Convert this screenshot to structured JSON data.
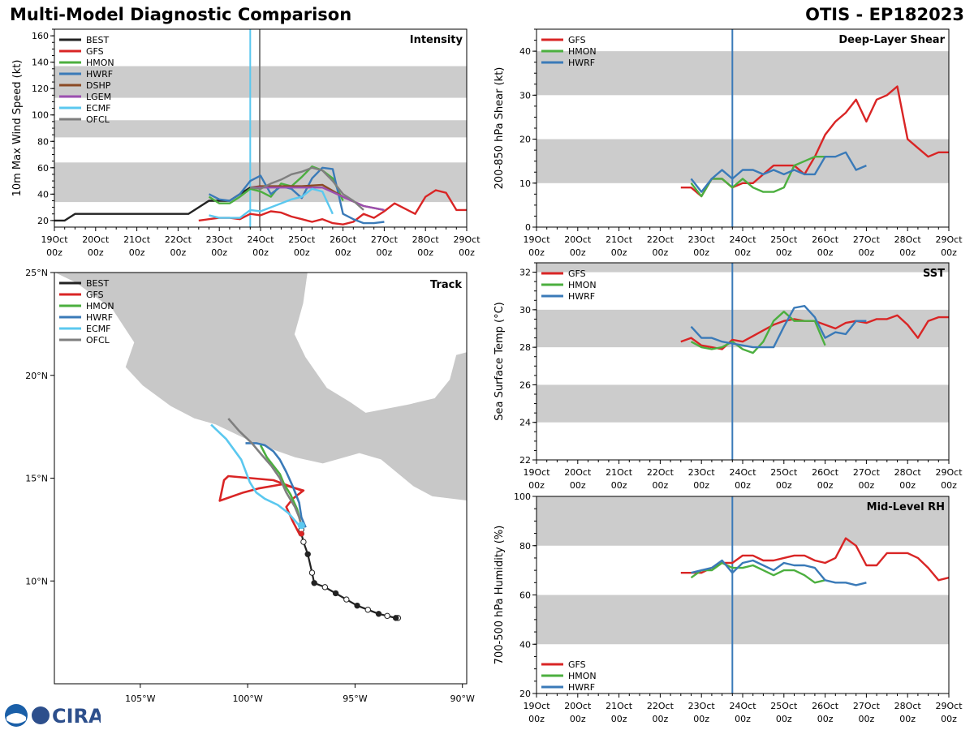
{
  "header": {
    "title": "Multi-Model Diagnostic Comparison",
    "storm": "OTIS - EP182023"
  },
  "logo": {
    "text": "CIRA",
    "agency_icon": "noaa-icon"
  },
  "colors": {
    "BEST": "#222222",
    "GFS": "#d92525",
    "HMON": "#4caf3f",
    "HWRF": "#3a7ab8",
    "DSHP": "#8b4a24",
    "LGEM": "#9b4fb0",
    "ECMF": "#5bc8ef",
    "OFCL": "#7f7f7f",
    "band": "#cccccc",
    "land": "#c8c8c8",
    "vline": "#3a7ab8"
  },
  "time_axis": {
    "ticks": [
      "19Oct\n00z",
      "20Oct\n00z",
      "21Oct\n00z",
      "22Oct\n00z",
      "23Oct\n00z",
      "24Oct\n00z",
      "25Oct\n00z",
      "26Oct\n00z",
      "27Oct\n00z",
      "28Oct\n00z",
      "29Oct\n00z"
    ],
    "current_time": 4.75
  },
  "chart_data": [
    {
      "id": "intensity",
      "type": "line",
      "title": "Intensity",
      "xlabel": "",
      "ylabel": "10m Max Wind Speed (kt)",
      "xlim": [
        0,
        10
      ],
      "ylim": [
        15,
        165
      ],
      "yticks": [
        20,
        40,
        60,
        80,
        100,
        120,
        140,
        160
      ],
      "bands": [
        [
          34,
          64
        ],
        [
          83,
          96
        ],
        [
          113,
          137
        ]
      ],
      "vlines": [
        {
          "x": 4.75,
          "color": "ECMF"
        },
        {
          "x": 4.98,
          "color": "OFCL"
        }
      ],
      "legend": [
        "BEST",
        "GFS",
        "HMON",
        "HWRF",
        "DSHP",
        "LGEM",
        "ECMF",
        "OFCL"
      ],
      "series": [
        {
          "name": "BEST",
          "x": [
            0,
            0.25,
            0.5,
            0.75,
            1,
            1.25,
            1.5,
            1.75,
            2,
            2.25,
            2.5,
            2.75,
            3,
            3.25,
            3.5,
            3.75,
            4,
            4.25,
            4.5,
            4.75
          ],
          "y": [
            20,
            20,
            25,
            25,
            25,
            25,
            25,
            25,
            25,
            25,
            25,
            25,
            25,
            25,
            30,
            35,
            35,
            35,
            40,
            45
          ]
        },
        {
          "name": "GFS",
          "x": [
            3.5,
            3.75,
            4,
            4.25,
            4.5,
            4.75,
            5,
            5.25,
            5.5,
            5.75,
            6,
            6.25,
            6.5,
            6.75,
            7,
            7.25,
            7.5,
            7.75,
            8,
            8.25,
            8.5,
            8.75,
            9,
            9.25,
            9.5,
            9.75,
            10
          ],
          "y": [
            20,
            21,
            22,
            22,
            21,
            25,
            24,
            27,
            26,
            23,
            21,
            19,
            21,
            18,
            17,
            19,
            25,
            22,
            27,
            33,
            29,
            25,
            38,
            43,
            41,
            28,
            28
          ]
        },
        {
          "name": "HMON",
          "x": [
            3.75,
            4,
            4.25,
            4.5,
            4.75,
            5,
            5.25,
            5.5,
            5.75,
            6,
            6.25,
            6.5,
            6.75,
            7
          ],
          "y": [
            38,
            33,
            33,
            38,
            44,
            42,
            38,
            48,
            46,
            53,
            61,
            58,
            52,
            35
          ]
        },
        {
          "name": "HWRF",
          "x": [
            3.75,
            4,
            4.25,
            4.5,
            4.75,
            5,
            5.25,
            5.5,
            5.75,
            6,
            6.25,
            6.5,
            6.75,
            7,
            7.25,
            7.5,
            7.75,
            8
          ],
          "y": [
            40,
            36,
            35,
            40,
            50,
            54,
            40,
            46,
            44,
            37,
            52,
            60,
            59,
            25,
            21,
            18,
            18,
            19
          ]
        },
        {
          "name": "DSHP",
          "x": [
            4.75,
            5,
            5.5,
            6,
            6.5,
            7,
            7.5,
            8
          ],
          "y": [
            45,
            46,
            46,
            46,
            47,
            38,
            31,
            28
          ]
        },
        {
          "name": "LGEM",
          "x": [
            4.75,
            5,
            5.5,
            6,
            6.5,
            7,
            7.5,
            8
          ],
          "y": [
            45,
            45,
            45,
            45,
            45,
            38,
            31,
            28
          ]
        },
        {
          "name": "ECMF",
          "x": [
            3.75,
            4,
            4.25,
            4.5,
            4.75,
            5,
            5.25,
            5.5,
            5.75,
            6,
            6.25,
            6.5,
            6.75
          ],
          "y": [
            24,
            22,
            22,
            22,
            28,
            27,
            30,
            33,
            36,
            38,
            44,
            42,
            25
          ]
        },
        {
          "name": "OFCL",
          "x": [
            4.75,
            5,
            5.25,
            5.5,
            5.75,
            6,
            6.25,
            6.5,
            6.75,
            7,
            7.25,
            7.5
          ],
          "y": [
            45,
            44,
            48,
            51,
            55,
            57,
            60,
            58,
            50,
            40,
            35,
            28
          ]
        }
      ]
    },
    {
      "id": "shear",
      "type": "line",
      "title": "Deep-Layer Shear",
      "xlabel": "",
      "ylabel": "200-850 hPa Shear (kt)",
      "xlim": [
        0,
        10
      ],
      "ylim": [
        0,
        45
      ],
      "yticks": [
        0,
        10,
        20,
        30,
        40
      ],
      "bands": [
        [
          10,
          20
        ],
        [
          30,
          40
        ]
      ],
      "vlines": [
        {
          "x": 4.75,
          "color": "vline"
        }
      ],
      "legend": [
        "GFS",
        "HMON",
        "HWRF"
      ],
      "series": [
        {
          "name": "GFS",
          "x": [
            3.5,
            3.75,
            4,
            4.25,
            4.5,
            4.75,
            5,
            5.25,
            5.5,
            5.75,
            6,
            6.25,
            6.5,
            6.75,
            7,
            7.25,
            7.5,
            7.75,
            8,
            8.25,
            8.5,
            8.75,
            9,
            9.25,
            9.5,
            9.75,
            10
          ],
          "y": [
            9,
            9,
            7,
            11,
            11,
            9,
            10,
            10,
            12,
            14,
            14,
            14,
            12,
            16,
            21,
            24,
            26,
            29,
            24,
            29,
            30,
            32,
            20,
            18,
            16,
            17,
            17
          ]
        },
        {
          "name": "HMON",
          "x": [
            3.75,
            4,
            4.25,
            4.5,
            4.75,
            5,
            5.25,
            5.5,
            5.75,
            6,
            6.25,
            6.5,
            6.75,
            7
          ],
          "y": [
            10,
            7,
            11,
            11,
            9,
            11,
            9,
            8,
            8,
            9,
            14,
            15,
            16,
            16
          ]
        },
        {
          "name": "HWRF",
          "x": [
            3.75,
            4,
            4.25,
            4.5,
            4.75,
            5,
            5.25,
            5.5,
            5.75,
            6,
            6.25,
            6.5,
            6.75,
            7,
            7.25,
            7.5,
            7.75,
            8
          ],
          "y": [
            11,
            8,
            11,
            13,
            11,
            13,
            13,
            12,
            13,
            12,
            13,
            12,
            12,
            16,
            16,
            17,
            13,
            14
          ]
        }
      ]
    },
    {
      "id": "track",
      "type": "scatter",
      "title": "Track",
      "xlabel": "",
      "ylabel": "",
      "xlim": [
        -109,
        -89.8
      ],
      "ylim": [
        5,
        25
      ],
      "xticks": [
        {
          "v": -105,
          "label": "105°W"
        },
        {
          "v": -100,
          "label": "100°W"
        },
        {
          "v": -95,
          "label": "95°W"
        },
        {
          "v": -90,
          "label": "90°W"
        }
      ],
      "yticks": [
        {
          "v": 10,
          "label": "10°N"
        },
        {
          "v": 15,
          "label": "15°N"
        },
        {
          "v": 20,
          "label": "20°N"
        },
        {
          "v": 25,
          "label": "25°N"
        }
      ],
      "legend": [
        "BEST",
        "GFS",
        "HMON",
        "HWRF",
        "ECMF",
        "OFCL"
      ],
      "series": [
        {
          "name": "BEST",
          "lon": [
            -93.0,
            -93.1,
            -93.5,
            -93.9,
            -94.4,
            -94.9,
            -95.4,
            -95.9,
            -96.4,
            -96.9,
            -97.0,
            -97.2,
            -97.4,
            -97.5,
            -97.5,
            -97.5
          ],
          "lat": [
            8.2,
            8.2,
            8.3,
            8.4,
            8.6,
            8.8,
            9.1,
            9.4,
            9.7,
            9.9,
            10.4,
            11.3,
            11.9,
            12.3,
            12.5,
            12.7
          ],
          "open": [
            1,
            0,
            1,
            0,
            1,
            0,
            1,
            0,
            1,
            0,
            1,
            0,
            1,
            0,
            1,
            0
          ]
        },
        {
          "name": "GFS",
          "lon": [
            -97.6,
            -97.9,
            -98.2,
            -97.9,
            -97.4,
            -98.4,
            -99.5,
            -100.2,
            -101.3,
            -101.1,
            -100.9,
            -98.8,
            -97.5
          ],
          "lat": [
            12.3,
            12.9,
            13.6,
            14.0,
            14.4,
            14.7,
            14.5,
            14.3,
            13.9,
            14.9,
            15.1,
            14.9,
            14.4
          ]
        },
        {
          "name": "HMON",
          "lon": [
            -97.5,
            -97.7,
            -98.0,
            -98.3,
            -98.5,
            -98.8,
            -99.1,
            -99.4
          ],
          "lat": [
            12.7,
            13.5,
            14.2,
            14.7,
            15.2,
            15.6,
            16.0,
            16.6
          ]
        },
        {
          "name": "HWRF",
          "lon": [
            -97.3,
            -97.5,
            -97.6,
            -97.9,
            -98.2,
            -98.5,
            -98.8,
            -99.2,
            -99.6,
            -100.1
          ],
          "lat": [
            12.6,
            13.1,
            13.8,
            14.6,
            15.3,
            15.9,
            16.3,
            16.6,
            16.7,
            16.7
          ]
        },
        {
          "name": "ECMF",
          "lon": [
            -97.6,
            -98.1,
            -98.6,
            -99.2,
            -99.6,
            -99.9,
            -100.3,
            -101.0,
            -101.7
          ],
          "lat": [
            12.7,
            13.3,
            13.7,
            14.0,
            14.3,
            14.8,
            15.9,
            16.9,
            17.6
          ]
        },
        {
          "name": "OFCL",
          "lon": [
            -97.5,
            -97.6,
            -97.8,
            -98.2,
            -98.5,
            -98.9,
            -99.4,
            -99.8,
            -100.4,
            -100.9
          ],
          "lat": [
            12.7,
            13.1,
            13.6,
            14.3,
            15.0,
            15.6,
            16.2,
            16.7,
            17.3,
            17.9
          ]
        }
      ]
    },
    {
      "id": "sst",
      "type": "line",
      "title": "SST",
      "xlabel": "",
      "ylabel": "Sea Surface Temp (°C)",
      "xlim": [
        0,
        10
      ],
      "ylim": [
        22,
        32.5
      ],
      "yticks": [
        22,
        24,
        26,
        28,
        30,
        32
      ],
      "bands": [
        [
          24,
          26
        ],
        [
          28,
          30
        ],
        [
          32,
          32.5
        ]
      ],
      "vlines": [
        {
          "x": 4.75,
          "color": "vline"
        }
      ],
      "legend": [
        "GFS",
        "HMON",
        "HWRF"
      ],
      "series": [
        {
          "name": "GFS",
          "x": [
            3.5,
            3.75,
            4,
            4.25,
            4.5,
            4.75,
            5,
            5.25,
            5.5,
            5.75,
            6,
            6.25,
            6.5,
            6.75,
            7,
            7.25,
            7.5,
            7.75,
            8,
            8.25,
            8.5,
            8.75,
            9,
            9.25,
            9.5,
            9.75,
            10
          ],
          "y": [
            28.3,
            28.5,
            28.1,
            28.0,
            27.9,
            28.4,
            28.3,
            28.6,
            28.9,
            29.2,
            29.4,
            29.5,
            29.4,
            29.4,
            29.2,
            29.0,
            29.3,
            29.4,
            29.3,
            29.5,
            29.5,
            29.7,
            29.2,
            28.5,
            29.4,
            29.6,
            29.6
          ]
        },
        {
          "name": "HMON",
          "x": [
            3.75,
            4,
            4.25,
            4.5,
            4.75,
            5,
            5.25,
            5.5,
            5.75,
            6,
            6.25,
            6.5,
            6.75,
            7
          ],
          "y": [
            28.3,
            28.0,
            27.9,
            28.0,
            28.3,
            27.9,
            27.7,
            28.3,
            29.4,
            29.9,
            29.4,
            29.4,
            29.4,
            28.1
          ]
        },
        {
          "name": "HWRF",
          "x": [
            3.75,
            4,
            4.25,
            4.5,
            4.75,
            5,
            5.25,
            5.5,
            5.75,
            6,
            6.25,
            6.5,
            6.75,
            7,
            7.25,
            7.5,
            7.75,
            8
          ],
          "y": [
            29.1,
            28.5,
            28.5,
            28.3,
            28.2,
            28.1,
            28.0,
            28.0,
            28.0,
            29.1,
            30.1,
            30.2,
            29.6,
            28.5,
            28.8,
            28.7,
            29.4,
            29.4
          ]
        }
      ]
    },
    {
      "id": "rh",
      "type": "line",
      "title": "Mid-Level RH",
      "xlabel": "",
      "ylabel": "700-500 hPa Humidity (%)",
      "xlim": [
        0,
        10
      ],
      "ylim": [
        20,
        100
      ],
      "yticks": [
        20,
        40,
        60,
        80,
        100
      ],
      "bands": [
        [
          40,
          60
        ],
        [
          80,
          100
        ]
      ],
      "vlines": [
        {
          "x": 4.75,
          "color": "vline"
        }
      ],
      "legend": [
        "GFS",
        "HMON",
        "HWRF"
      ],
      "legend_pos": "bottom-left",
      "series": [
        {
          "name": "GFS",
          "x": [
            3.5,
            3.75,
            4,
            4.25,
            4.5,
            4.75,
            5,
            5.25,
            5.5,
            5.75,
            6,
            6.25,
            6.5,
            6.75,
            7,
            7.25,
            7.5,
            7.75,
            8,
            8.25,
            8.5,
            8.75,
            9,
            9.25,
            9.5,
            9.75,
            10
          ],
          "y": [
            69,
            69,
            69,
            71,
            73,
            73,
            76,
            76,
            74,
            74,
            75,
            76,
            76,
            74,
            73,
            75,
            83,
            80,
            72,
            72,
            77,
            77,
            77,
            75,
            71,
            66,
            67
          ]
        },
        {
          "name": "HMON",
          "x": [
            3.75,
            4,
            4.25,
            4.5,
            4.75,
            5,
            5.25,
            5.5,
            5.75,
            6,
            6.25,
            6.5,
            6.75,
            7
          ],
          "y": [
            67,
            70,
            70,
            73,
            71,
            71,
            72,
            70,
            68,
            70,
            70,
            68,
            65,
            66
          ]
        },
        {
          "name": "HWRF",
          "x": [
            3.75,
            4,
            4.25,
            4.5,
            4.75,
            5,
            5.25,
            5.5,
            5.75,
            6,
            6.25,
            6.5,
            6.75,
            7,
            7.25,
            7.5,
            7.75,
            8
          ],
          "y": [
            69,
            70,
            71,
            74,
            69,
            73,
            74,
            72,
            70,
            73,
            72,
            72,
            71,
            66,
            65,
            65,
            64,
            65
          ]
        }
      ]
    }
  ]
}
